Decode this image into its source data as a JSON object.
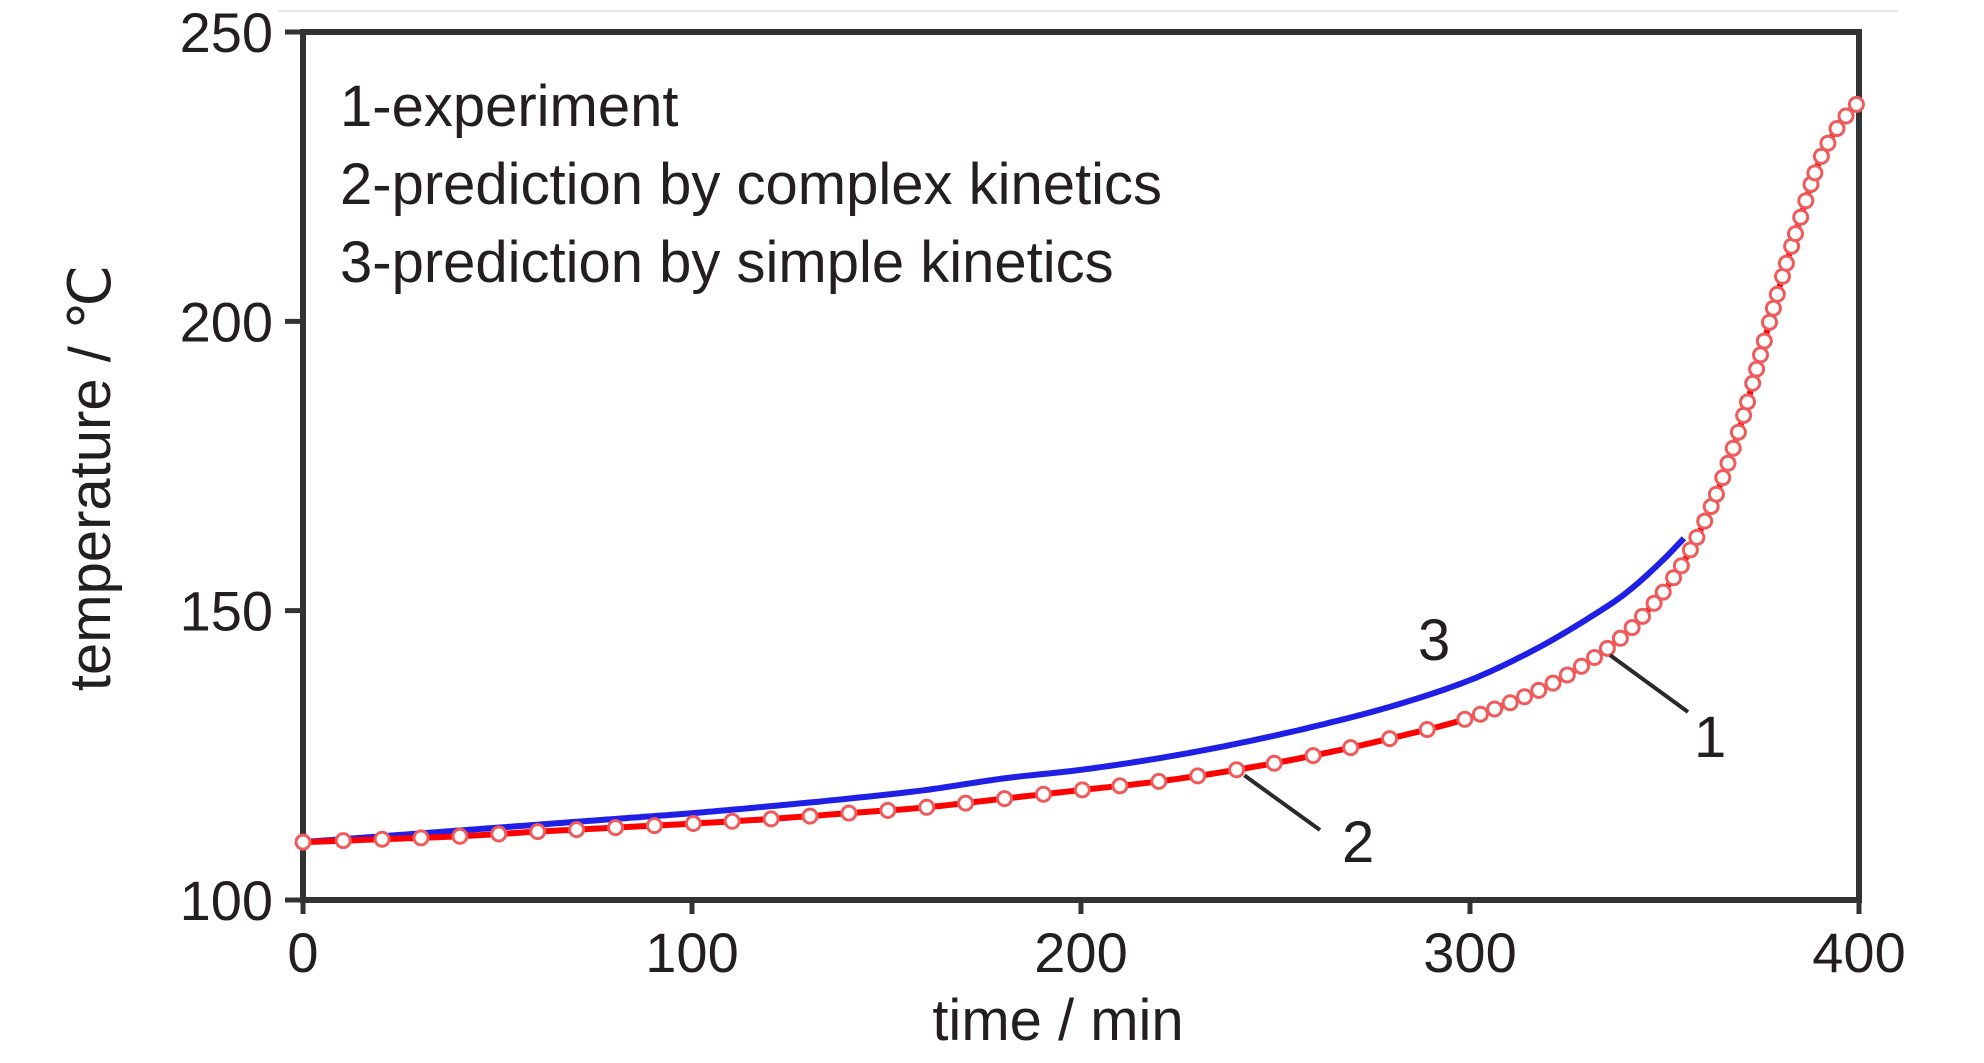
{
  "chart_data": {
    "type": "line",
    "xlabel": "time / min",
    "ylabel": "temperature / ℃",
    "xlim": [
      0,
      400
    ],
    "ylim": [
      100,
      250
    ],
    "xticks": [
      "0",
      "100",
      "200",
      "300",
      "400"
    ],
    "yticks": [
      "100",
      "150",
      "200",
      "250"
    ],
    "grid": false,
    "legend": {
      "position": "top-left",
      "entries": [
        "1-experiment",
        "2-prediction by complex kinetics",
        "3-prediction by simple kinetics"
      ]
    },
    "curve_labels": [
      "1",
      "2",
      "3"
    ],
    "series": [
      {
        "name": "1-experiment",
        "style": "circles",
        "color": "#ee2a2a",
        "x": [
          0,
          20,
          40,
          60,
          80,
          100,
          120,
          140,
          160,
          180,
          200,
          220,
          240,
          260,
          280,
          300,
          310,
          320,
          330,
          340,
          345,
          350,
          355,
          360,
          365,
          370,
          375,
          380,
          385,
          390,
          395,
          400
        ],
        "y": [
          110,
          110.5,
          111,
          111.8,
          112.5,
          113.2,
          114,
          115,
          116,
          117.5,
          119,
          120.5,
          122.5,
          125,
          128,
          131.5,
          134,
          137,
          141,
          146,
          149.5,
          153.5,
          158.5,
          165,
          173,
          183,
          195,
          207,
          218,
          228,
          234,
          238
        ]
      },
      {
        "name": "2-prediction by complex kinetics",
        "style": "line",
        "color": "#ff0000",
        "x": [
          0,
          20,
          40,
          60,
          80,
          100,
          120,
          140,
          160,
          180,
          200,
          220,
          240,
          260,
          280,
          300,
          310,
          320,
          330,
          340,
          345,
          350,
          355,
          360,
          365,
          370,
          375,
          380,
          385,
          390,
          395,
          400
        ],
        "y": [
          110,
          110.5,
          111,
          111.8,
          112.5,
          113.2,
          114,
          115,
          116,
          117.5,
          119,
          120.5,
          122.5,
          125,
          128,
          131.5,
          134,
          137,
          141,
          146,
          149.5,
          153.5,
          158.5,
          165,
          173,
          183,
          195,
          207,
          218,
          228,
          234,
          238
        ]
      },
      {
        "name": "3-prediction by simple kinetics",
        "style": "line",
        "color": "#1f1fe6",
        "x": [
          0,
          20,
          40,
          60,
          80,
          100,
          120,
          140,
          160,
          180,
          200,
          220,
          240,
          260,
          280,
          300,
          310,
          320,
          330,
          340,
          350,
          355
        ],
        "y": [
          110,
          111,
          112,
          113,
          114,
          115,
          116.2,
          117.5,
          119,
          121,
          122.5,
          124.5,
          127,
          130,
          133.5,
          138,
          141,
          144.5,
          148.5,
          153,
          159,
          162.5
        ]
      }
    ]
  }
}
